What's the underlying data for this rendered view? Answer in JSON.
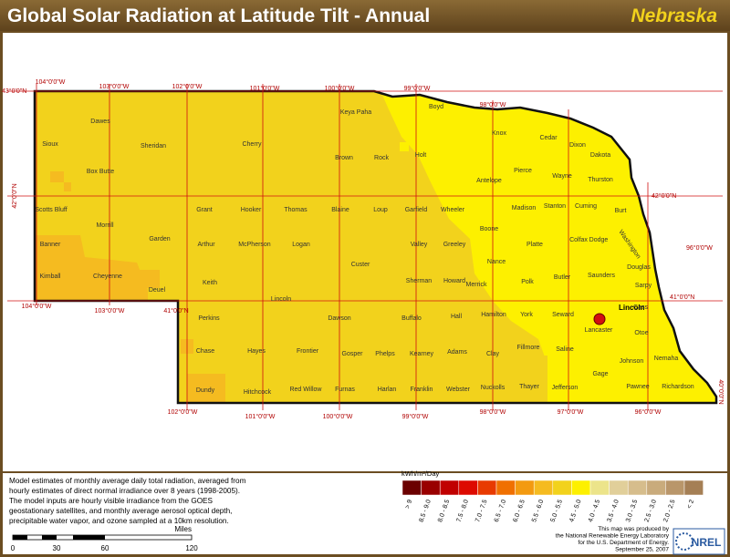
{
  "header": {
    "title": "Global Solar Radiation at Latitude Tilt - Annual",
    "state": "Nebraska"
  },
  "graticule_labels": [
    "43°0'0\"N",
    "104°0'0\"W",
    "103°0'0\"W",
    "102°0'0\"W",
    "101°0'0\"W",
    "100°0'0\"W",
    "99°0'0\"W",
    "98°0'0\"W",
    "42°0'0\"N",
    "42°0'0\"N",
    "96°0'0\"W",
    "104°0'0\"W",
    "103°0'0\"W",
    "41°0'0\"N",
    "41°0'0\"N",
    "40°0'0\"N",
    "102°0'0\"W",
    "101°0'0\"W",
    "100°0'0\"W",
    "99°0'0\"W",
    "98°0'0\"W",
    "97°0'0\"W",
    "96°0'0\"W"
  ],
  "counties": [
    "Sioux",
    "Dawes",
    "Sheridan",
    "Cherry",
    "Keya Paha",
    "Boyd",
    "Knox",
    "Cedar",
    "Dixon",
    "Dakota",
    "Box Butte",
    "Brown",
    "Rock",
    "Holt",
    "Antelope",
    "Pierce",
    "Wayne",
    "Thurston",
    "Scotts Bluff",
    "Morrill",
    "Garden",
    "Grant",
    "Hooker",
    "Thomas",
    "Blaine",
    "Loup",
    "Garfield",
    "Wheeler",
    "Madison",
    "Stanton",
    "Cuming",
    "Burt",
    "Boone",
    "Platte",
    "Colfax",
    "Dodge",
    "Washington",
    "Banner",
    "Arthur",
    "McPherson",
    "Logan",
    "Valley",
    "Greeley",
    "Custer",
    "Nance",
    "Douglas",
    "Kimball",
    "Cheyenne",
    "Deuel",
    "Keith",
    "Sherman",
    "Howard",
    "Merrick",
    "Polk",
    "Butler",
    "Saunders",
    "Sarpy",
    "Lincoln",
    "Perkins",
    "Dawson",
    "Buffalo",
    "Hall",
    "Hamilton",
    "York",
    "Seward",
    "Lancaster",
    "Cass",
    "Otoe",
    "Chase",
    "Hayes",
    "Frontier",
    "Gosper",
    "Phelps",
    "Kearney",
    "Adams",
    "Clay",
    "Fillmore",
    "Saline",
    "Johnson",
    "Nemaha",
    "Dundy",
    "Hitchcock",
    "Red Willow",
    "Furnas",
    "Harlan",
    "Franklin",
    "Webster",
    "Nuckolls",
    "Thayer",
    "Jefferson",
    "Gage",
    "Pawnee",
    "Richardson"
  ],
  "city": "Lincoln",
  "description": [
    "Model estimates of monthly average daily total radiation, averaged from",
    "hourly estimates of direct normal irradiance over 8 years (1998-2005).",
    "The model inputs are hourly visible irradiance from the GOES",
    "geostationary satellites, and monthly average aerosol optical depth,",
    "precipitable water vapor, and ozone sampled at a 10km resolution."
  ],
  "legend": {
    "title": "kWh/m²/Day",
    "labels": [
      "> 9",
      "8.5 - 9.0",
      "8.0 - 8.5",
      "7.5 - 8.0",
      "7.0 - 7.5",
      "6.5 - 7.0",
      "6.0 - 6.5",
      "5.5 - 6.0",
      "5.0 - 5.5",
      "4.5 - 5.0",
      "4.0 - 4.5",
      "3.5 - 4.0",
      "3.0 - 3.5",
      "2.5 - 3.0",
      "2.0 - 2.5",
      "< 2"
    ],
    "colors": [
      "#6b0000",
      "#990000",
      "#c00000",
      "#dd0a00",
      "#e83a00",
      "#f07000",
      "#f39a10",
      "#f5bb20",
      "#f2d21c",
      "#fdf000",
      "#ece48a",
      "#e1cf9a",
      "#d6bd8c",
      "#c9ab7c",
      "#b9966a",
      "#a57f55"
    ]
  },
  "scale_bar": {
    "ticks": [
      "0",
      "30",
      "60",
      "120"
    ],
    "unit": "Miles"
  },
  "credits": [
    "This map was produced by",
    "the National Renewable Energy Laboratory",
    "for the U.S. Department of Energy.",
    "September 25, 2007"
  ],
  "logo": "NREL"
}
